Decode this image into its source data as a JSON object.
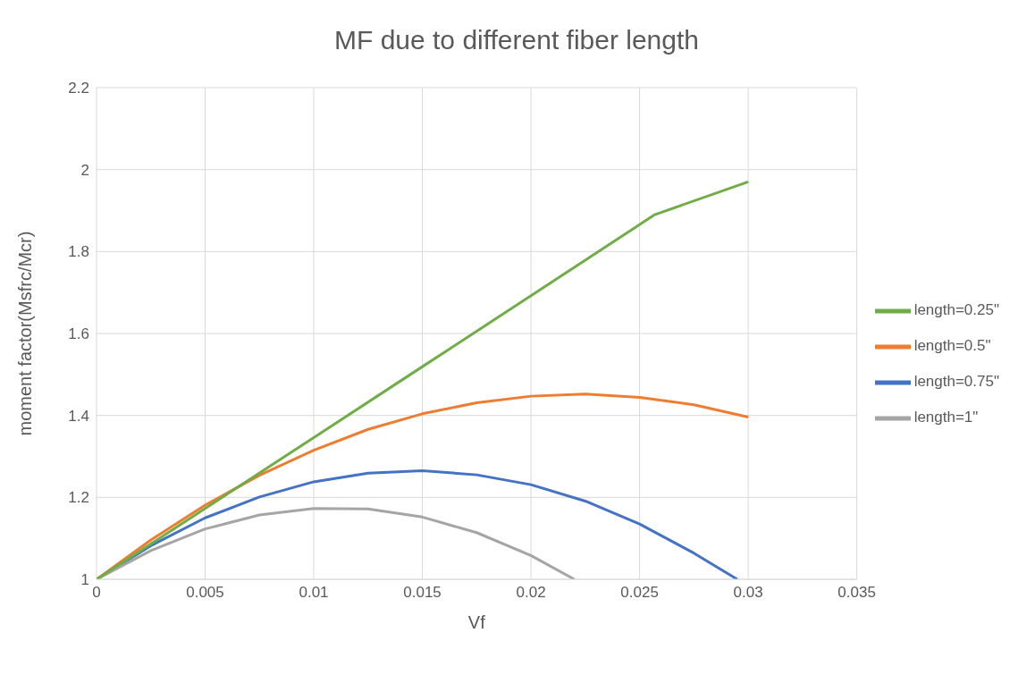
{
  "chart_data": {
    "type": "line",
    "title": "MF due to different fiber length",
    "xlabel": "Vf",
    "ylabel": "moment factor(Msfrc/Mcr)",
    "series": [
      {
        "name": "length=0.75\"",
        "color": "#4472c4",
        "x": [
          0,
          0.0025,
          0.005,
          0.0075,
          0.01,
          0.0125,
          0.015,
          0.0175,
          0.02,
          0.0225,
          0.025,
          0.0275,
          0.0295
        ],
        "values": [
          1,
          1.082,
          1.15,
          1.201,
          1.238,
          1.259,
          1.265,
          1.255,
          1.231,
          1.191,
          1.135,
          1.064,
          1.0
        ]
      },
      {
        "name": "length=0.5\"",
        "color": "#ed7d31",
        "x": [
          0,
          0.0025,
          0.005,
          0.0075,
          0.01,
          0.0125,
          0.015,
          0.0175,
          0.02,
          0.0225,
          0.025,
          0.0275,
          0.03
        ],
        "values": [
          1,
          1.096,
          1.181,
          1.254,
          1.315,
          1.366,
          1.404,
          1.431,
          1.447,
          1.452,
          1.444,
          1.426,
          1.396
        ]
      },
      {
        "name": "length=1\"",
        "color": "#a5a5a5",
        "x": [
          0,
          0.0025,
          0.005,
          0.0075,
          0.01,
          0.0125,
          0.015,
          0.0175,
          0.02,
          0.022
        ],
        "values": [
          1,
          1.07,
          1.123,
          1.157,
          1.173,
          1.172,
          1.152,
          1.114,
          1.058,
          1.0
        ]
      },
      {
        "name": "length=0.25\"",
        "color": "#70ad47",
        "x": [
          0,
          0.005,
          0.01,
          0.015,
          0.02,
          0.0257,
          0.03
        ],
        "values": [
          1,
          1.173,
          1.346,
          1.519,
          1.692,
          1.89,
          1.97
        ]
      }
    ],
    "xlim": [
      0,
      0.035
    ],
    "xticks": [
      0,
      0.005,
      0.01,
      0.015,
      0.02,
      0.025,
      0.03,
      0.035
    ],
    "ylim": [
      1,
      2.2
    ],
    "yticks": [
      1,
      1.2,
      1.4,
      1.6,
      1.8,
      2,
      2.2
    ],
    "grid": true,
    "legend": "right",
    "marker": "none",
    "line_style": "solid"
  }
}
